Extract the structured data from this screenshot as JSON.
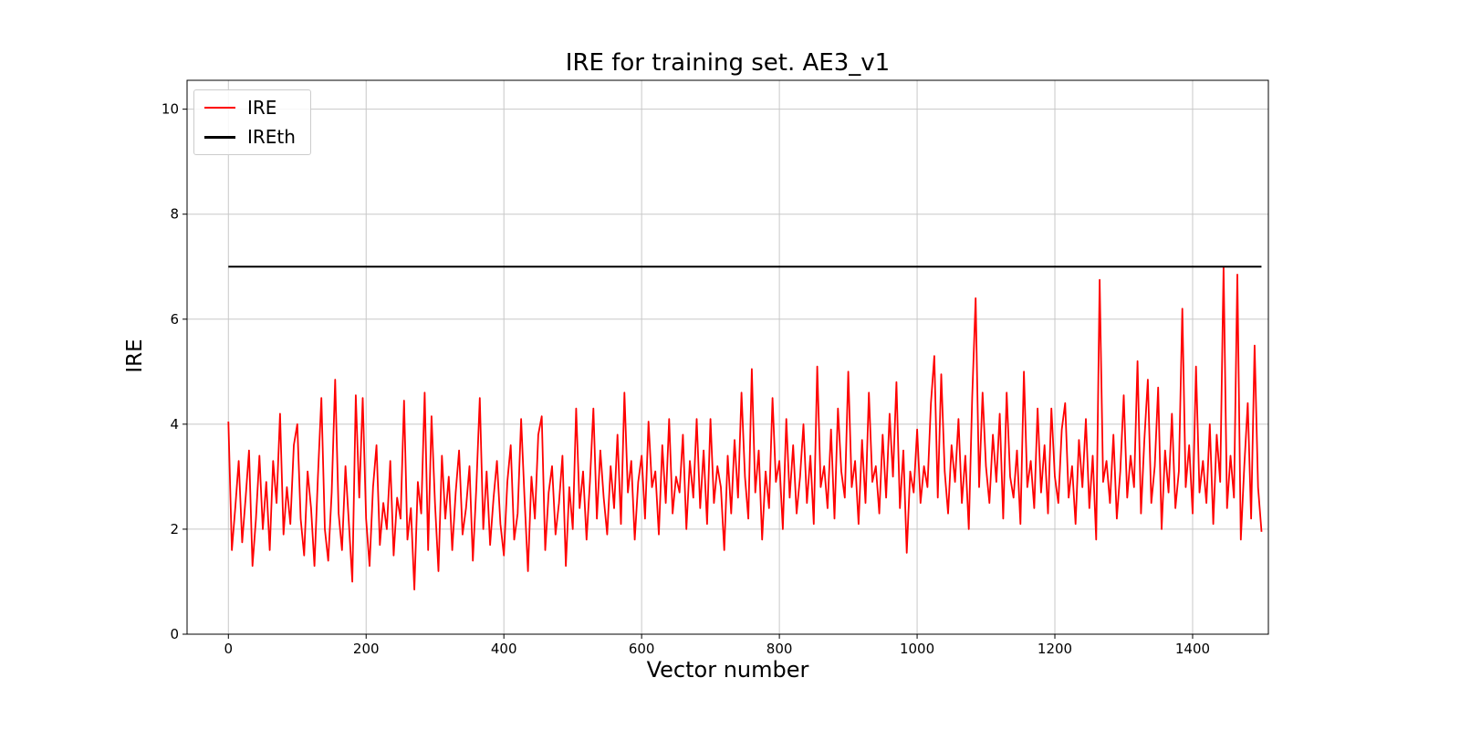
{
  "chart_data": {
    "type": "line",
    "title": "IRE for training set. AE3_v1",
    "xlabel": "Vector number",
    "ylabel": "IRE",
    "xlim": [
      -60,
      1510
    ],
    "ylim": [
      0,
      10.55
    ],
    "x_ticks": [
      0,
      200,
      400,
      600,
      800,
      1000,
      1200,
      1400
    ],
    "y_ticks": [
      0,
      2,
      4,
      6,
      8,
      10
    ],
    "grid": true,
    "grid_color": "#c8c8c8",
    "legend_position": "upper left",
    "series": [
      {
        "name": "IRE",
        "color": "#ff0000",
        "linewidth": 1.8,
        "x_start": 0,
        "x_step": 5,
        "values": [
          4.05,
          1.6,
          2.4,
          3.3,
          1.75,
          2.6,
          3.5,
          1.3,
          2.2,
          3.4,
          2.0,
          2.9,
          1.6,
          3.3,
          2.5,
          4.2,
          1.9,
          2.8,
          2.1,
          3.6,
          4.0,
          2.2,
          1.5,
          3.1,
          2.4,
          1.3,
          3.0,
          4.5,
          2.0,
          1.4,
          2.7,
          4.85,
          2.3,
          1.6,
          3.2,
          2.1,
          1.0,
          4.55,
          2.6,
          4.5,
          2.2,
          1.3,
          2.8,
          3.6,
          1.7,
          2.5,
          2.0,
          3.3,
          1.5,
          2.6,
          2.2,
          4.45,
          1.8,
          2.4,
          0.85,
          2.9,
          2.3,
          4.6,
          1.6,
          4.15,
          2.5,
          1.2,
          3.4,
          2.2,
          3.0,
          1.6,
          2.7,
          3.5,
          1.9,
          2.4,
          3.2,
          1.4,
          2.8,
          4.5,
          2.0,
          3.1,
          1.7,
          2.6,
          3.3,
          2.1,
          1.5,
          2.9,
          3.6,
          1.8,
          2.3,
          4.1,
          2.6,
          1.2,
          3.0,
          2.2,
          3.8,
          4.15,
          1.6,
          2.7,
          3.2,
          1.9,
          2.5,
          3.4,
          1.3,
          2.8,
          2.0,
          4.3,
          2.4,
          3.1,
          1.8,
          2.9,
          4.3,
          2.2,
          3.5,
          2.6,
          1.9,
          3.2,
          2.4,
          3.8,
          2.1,
          4.6,
          2.7,
          3.3,
          1.8,
          2.9,
          3.4,
          2.2,
          4.05,
          2.8,
          3.1,
          1.9,
          3.6,
          2.5,
          4.1,
          2.3,
          3.0,
          2.7,
          3.8,
          2.0,
          3.3,
          2.6,
          4.1,
          2.4,
          3.5,
          2.1,
          4.1,
          2.5,
          3.2,
          2.8,
          1.6,
          3.4,
          2.3,
          3.7,
          2.6,
          4.6,
          3.0,
          2.2,
          5.05,
          2.7,
          3.5,
          1.8,
          3.1,
          2.4,
          4.5,
          2.9,
          3.3,
          2.0,
          4.1,
          2.6,
          3.6,
          2.3,
          3.0,
          4.0,
          2.5,
          3.4,
          2.1,
          5.1,
          2.8,
          3.2,
          2.4,
          3.9,
          2.2,
          4.3,
          3.1,
          2.6,
          5.0,
          2.8,
          3.3,
          2.1,
          3.7,
          2.5,
          4.6,
          2.9,
          3.2,
          2.3,
          3.8,
          2.6,
          4.2,
          3.0,
          4.8,
          2.4,
          3.5,
          1.55,
          3.1,
          2.7,
          3.9,
          2.5,
          3.2,
          2.8,
          4.4,
          5.3,
          2.6,
          4.95,
          3.1,
          2.3,
          3.6,
          2.9,
          4.1,
          2.5,
          3.4,
          2.0,
          4.5,
          6.4,
          2.8,
          4.6,
          3.2,
          2.5,
          3.8,
          2.9,
          4.2,
          2.2,
          4.6,
          3.0,
          2.6,
          3.5,
          2.1,
          5.0,
          2.8,
          3.3,
          2.4,
          4.3,
          2.7,
          3.6,
          2.3,
          4.3,
          3.0,
          2.5,
          3.9,
          4.4,
          2.6,
          3.2,
          2.1,
          3.7,
          2.8,
          4.1,
          2.4,
          3.4,
          1.8,
          6.75,
          2.9,
          3.3,
          2.5,
          3.8,
          2.2,
          3.1,
          4.55,
          2.6,
          3.4,
          2.8,
          5.2,
          2.3,
          3.7,
          4.85,
          2.5,
          3.2,
          4.7,
          2.0,
          3.5,
          2.7,
          4.2,
          2.4,
          3.1,
          6.2,
          2.8,
          3.6,
          2.3,
          5.1,
          2.7,
          3.3,
          2.5,
          4.0,
          2.1,
          3.8,
          2.9,
          7.0,
          2.4,
          3.4,
          2.6,
          6.85,
          1.8,
          3.2,
          4.4,
          2.2,
          5.5,
          2.8,
          1.95
        ]
      },
      {
        "name": "IREth",
        "color": "#000000",
        "linewidth": 2,
        "type": "hline",
        "y": 7.0,
        "x_range": [
          0,
          1500
        ]
      }
    ]
  }
}
